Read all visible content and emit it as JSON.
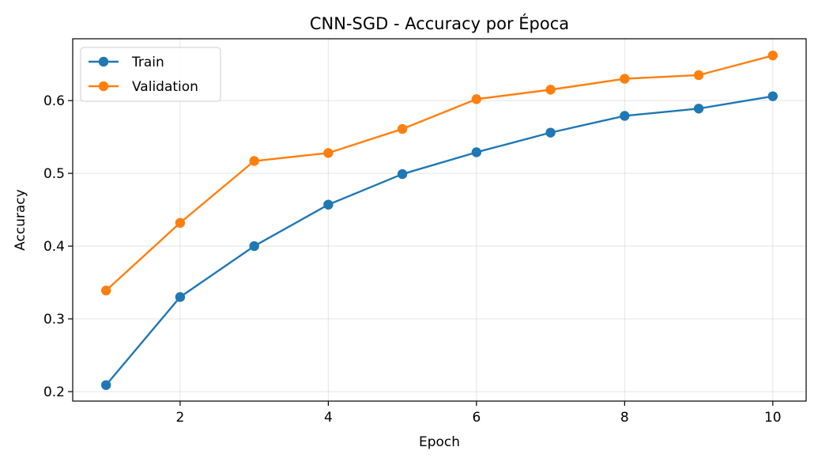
{
  "chart_data": {
    "type": "line",
    "title": "CNN-SGD - Accuracy por Época",
    "xlabel": "Epoch",
    "ylabel": "Accuracy",
    "x": [
      1,
      2,
      3,
      4,
      5,
      6,
      7,
      8,
      9,
      10
    ],
    "xlim": [
      0.55,
      10.45
    ],
    "ylim": [
      0.187,
      0.685
    ],
    "xticks": [
      2,
      4,
      6,
      8,
      10
    ],
    "yticks": [
      0.2,
      0.3,
      0.4,
      0.5,
      0.6
    ],
    "xtick_labels": [
      "2",
      "4",
      "6",
      "8",
      "10"
    ],
    "ytick_labels": [
      "0.2",
      "0.3",
      "0.4",
      "0.5",
      "0.6"
    ],
    "grid": true,
    "legend_position": "top-left",
    "series": [
      {
        "name": "Train",
        "color": "#1f77b4",
        "marker": "circle",
        "values": [
          0.209,
          0.33,
          0.4,
          0.457,
          0.499,
          0.529,
          0.556,
          0.579,
          0.589,
          0.606
        ]
      },
      {
        "name": "Validation",
        "color": "#ff7f0e",
        "marker": "circle",
        "values": [
          0.339,
          0.432,
          0.517,
          0.528,
          0.561,
          0.602,
          0.615,
          0.63,
          0.635,
          0.662
        ]
      }
    ]
  }
}
